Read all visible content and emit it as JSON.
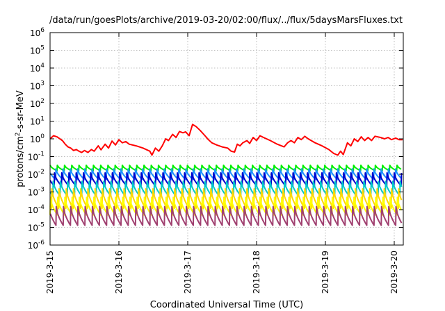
{
  "chart_data": {
    "type": "line",
    "title": "/data/run/goesPlots/archive/2019-03-20/02:00/flux/../flux/5daysMarsFluxes.txt",
    "xlabel": "Coordinated Universal Time (UTC)",
    "ylabel_prefix": "protons/cm",
    "ylabel_sup": "2",
    "ylabel_suffix": "-s-sr-MeV",
    "x_tick_labels": [
      "2019-3-15",
      "2019-3-16",
      "2019-3-17",
      "2019-3-18",
      "2019-3-19",
      "2019-3-20"
    ],
    "x_range_days": [
      0,
      5.12
    ],
    "y_scale": "log",
    "ylim": [
      1e-06,
      1000000.0
    ],
    "y_ticks": [
      {
        "base": "10",
        "exp": "-6",
        "value": 1e-06
      },
      {
        "base": "10",
        "exp": "-5",
        "value": 1e-05
      },
      {
        "base": "10",
        "exp": "-4",
        "value": 0.0001
      },
      {
        "base": "10",
        "exp": "-3",
        "value": 0.001
      },
      {
        "base": "10",
        "exp": "-2",
        "value": 0.01
      },
      {
        "base": "10",
        "exp": "-1",
        "value": 0.1
      },
      {
        "base": "10",
        "exp": "0",
        "value": 1
      },
      {
        "base": "10",
        "exp": "1",
        "value": 10
      },
      {
        "base": "10",
        "exp": "2",
        "value": 100
      },
      {
        "base": "10",
        "exp": "3",
        "value": 1000
      },
      {
        "base": "10",
        "exp": "4",
        "value": 10000
      },
      {
        "base": "10",
        "exp": "5",
        "value": 100000
      },
      {
        "base": "10",
        "exp": "6",
        "value": 1000000
      }
    ],
    "grid": true,
    "legend": "none",
    "series": [
      {
        "color": "#ff0000",
        "style": "smooth",
        "points": [
          [
            0.0,
            1.0
          ],
          [
            0.05,
            1.5
          ],
          [
            0.1,
            1.3
          ],
          [
            0.18,
            0.8
          ],
          [
            0.22,
            0.5
          ],
          [
            0.26,
            0.35
          ],
          [
            0.3,
            0.3
          ],
          [
            0.34,
            0.22
          ],
          [
            0.38,
            0.25
          ],
          [
            0.42,
            0.2
          ],
          [
            0.46,
            0.17
          ],
          [
            0.5,
            0.22
          ],
          [
            0.55,
            0.17
          ],
          [
            0.6,
            0.25
          ],
          [
            0.64,
            0.2
          ],
          [
            0.7,
            0.4
          ],
          [
            0.74,
            0.24
          ],
          [
            0.8,
            0.5
          ],
          [
            0.85,
            0.3
          ],
          [
            0.9,
            0.75
          ],
          [
            0.95,
            0.45
          ],
          [
            1.0,
            0.9
          ],
          [
            1.05,
            0.6
          ],
          [
            1.1,
            0.7
          ],
          [
            1.15,
            0.5
          ],
          [
            1.25,
            0.4
          ],
          [
            1.35,
            0.3
          ],
          [
            1.45,
            0.2
          ],
          [
            1.48,
            0.12
          ],
          [
            1.53,
            0.3
          ],
          [
            1.58,
            0.2
          ],
          [
            1.63,
            0.4
          ],
          [
            1.68,
            1.0
          ],
          [
            1.72,
            0.8
          ],
          [
            1.78,
            1.8
          ],
          [
            1.83,
            1.2
          ],
          [
            1.88,
            2.6
          ],
          [
            1.93,
            2.2
          ],
          [
            1.97,
            2.5
          ],
          [
            2.02,
            1.5
          ],
          [
            2.07,
            6.5
          ],
          [
            2.12,
            5.0
          ],
          [
            2.18,
            3.0
          ],
          [
            2.25,
            1.5
          ],
          [
            2.3,
            0.9
          ],
          [
            2.35,
            0.6
          ],
          [
            2.42,
            0.45
          ],
          [
            2.5,
            0.35
          ],
          [
            2.58,
            0.3
          ],
          [
            2.63,
            0.2
          ],
          [
            2.68,
            0.18
          ],
          [
            2.72,
            0.5
          ],
          [
            2.76,
            0.4
          ],
          [
            2.8,
            0.6
          ],
          [
            2.86,
            0.8
          ],
          [
            2.9,
            0.55
          ],
          [
            2.95,
            1.2
          ],
          [
            3.0,
            0.8
          ],
          [
            3.05,
            1.5
          ],
          [
            3.1,
            1.2
          ],
          [
            3.2,
            0.8
          ],
          [
            3.3,
            0.5
          ],
          [
            3.4,
            0.35
          ],
          [
            3.45,
            0.6
          ],
          [
            3.5,
            0.8
          ],
          [
            3.55,
            0.6
          ],
          [
            3.6,
            1.2
          ],
          [
            3.65,
            0.9
          ],
          [
            3.7,
            1.4
          ],
          [
            3.75,
            1.0
          ],
          [
            3.85,
            0.6
          ],
          [
            3.95,
            0.4
          ],
          [
            4.05,
            0.25
          ],
          [
            4.12,
            0.15
          ],
          [
            4.18,
            0.12
          ],
          [
            4.22,
            0.2
          ],
          [
            4.26,
            0.13
          ],
          [
            4.32,
            0.6
          ],
          [
            4.37,
            0.4
          ],
          [
            4.42,
            1.0
          ],
          [
            4.47,
            0.7
          ],
          [
            4.52,
            1.3
          ],
          [
            4.57,
            0.8
          ],
          [
            4.62,
            1.2
          ],
          [
            4.67,
            0.8
          ],
          [
            4.72,
            1.4
          ],
          [
            4.8,
            1.2
          ],
          [
            4.86,
            1.0
          ],
          [
            4.91,
            1.2
          ],
          [
            4.96,
            0.9
          ],
          [
            5.02,
            1.1
          ],
          [
            5.07,
            0.9
          ],
          [
            5.12,
            0.9
          ]
        ]
      },
      {
        "color": "#00ee00",
        "style": "sawtooth",
        "peak": 0.032,
        "trough": 0.016,
        "period": 0.105,
        "phase": 0.0
      },
      {
        "color": "#1e90ff",
        "style": "sawtooth",
        "peak": 0.02,
        "trough": 0.005,
        "period": 0.105,
        "phase": 0.02
      },
      {
        "color": "#0000cc",
        "style": "sawtooth",
        "peak": 0.012,
        "trough": 0.0022,
        "period": 0.105,
        "phase": 0.04
      },
      {
        "color": "#00c8c8",
        "style": "sawtooth",
        "peak": 0.004,
        "trough": 0.0006,
        "period": 0.105,
        "phase": 0.06
      },
      {
        "color": "#ffd700",
        "style": "sawtooth",
        "peak": 0.0015,
        "trough": 0.00012,
        "period": 0.105,
        "phase": 0.08
      },
      {
        "color": "#ffff00",
        "style": "sawtooth",
        "peak": 0.0005,
        "trough": 5e-05,
        "period": 0.105,
        "phase": 0.1
      },
      {
        "color": "#a04070",
        "style": "sawtooth",
        "peak": 0.00015,
        "trough": 1.3e-05,
        "period": 0.105,
        "phase": 0.12
      }
    ]
  }
}
